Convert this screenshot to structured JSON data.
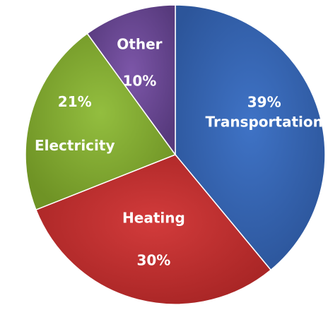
{
  "chart_data": {
    "type": "pie",
    "title": "",
    "start_angle_deg": 0,
    "direction": "clockwise",
    "slices": [
      {
        "label": "Transportation",
        "value": 39,
        "value_label": "39%",
        "color": "#3F73C6",
        "shade": "#2C559A"
      },
      {
        "label": "Heating",
        "value": 30,
        "value_label": "30%",
        "color": "#D23B3B",
        "shade": "#A82525"
      },
      {
        "label": "Electricity",
        "value": 21,
        "value_label": "21%",
        "color": "#93BE3F",
        "shade": "#6F9325"
      },
      {
        "label": "Other",
        "value": 10,
        "value_label": "10%",
        "color": "#7C56A8",
        "shade": "#573A7D"
      }
    ],
    "legend": "none"
  }
}
